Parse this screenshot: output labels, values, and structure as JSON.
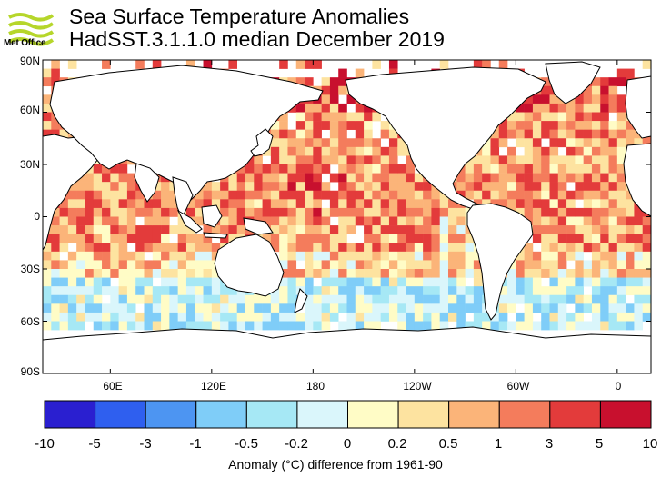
{
  "header": {
    "logo_text": "Met Office",
    "title": "Sea Surface Temperature Anomalies",
    "subtitle": "HadSST.3.1.1.0 median December 2019"
  },
  "map": {
    "lon_range": [
      20,
      380
    ],
    "lat_range": [
      -90,
      90
    ],
    "lat_labels": [
      "90N",
      "60N",
      "30N",
      "0",
      "30S",
      "60S",
      "90S"
    ],
    "lon_labels": [
      "60E",
      "120E",
      "180",
      "120W",
      "60W",
      "0"
    ]
  },
  "colorbar": {
    "labels": [
      "-10",
      "-5",
      "-3",
      "-1",
      "-0.5",
      "-0.2",
      "0",
      "0.2",
      "0.5",
      "1",
      "3",
      "5",
      "10"
    ],
    "colors": [
      "#2a1fd0",
      "#2f5fef",
      "#4d95f2",
      "#7fcdf8",
      "#a6e8f5",
      "#daf6fb",
      "#fffcc6",
      "#fde3a0",
      "#fbb479",
      "#f47c5c",
      "#e33b3b",
      "#c8102e"
    ],
    "title": "Anomaly (°C) difference from 1961-90"
  }
}
